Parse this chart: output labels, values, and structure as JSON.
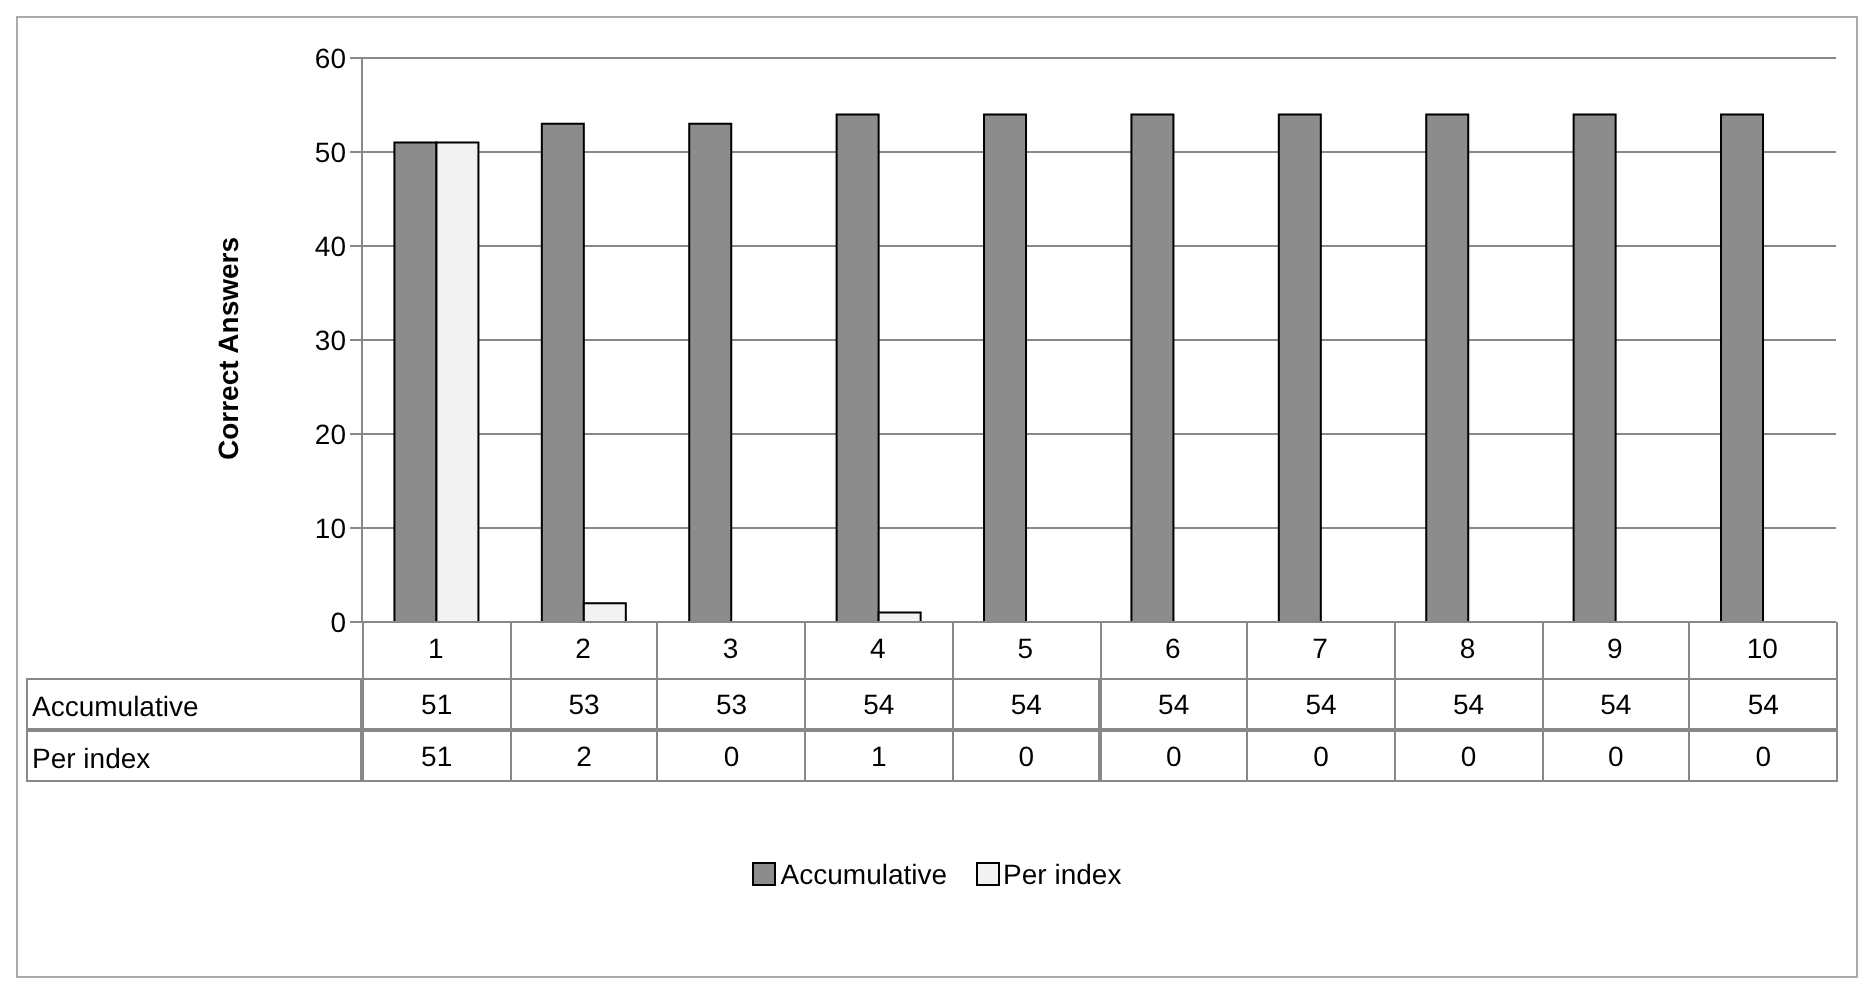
{
  "chart_data": {
    "type": "bar",
    "ylabel": "Correct Answers",
    "categories": [
      "1",
      "2",
      "3",
      "4",
      "5",
      "6",
      "7",
      "8",
      "9",
      "10"
    ],
    "series": [
      {
        "name": "Accumulative",
        "color": "#8c8c8c",
        "values": [
          51,
          53,
          53,
          54,
          54,
          54,
          54,
          54,
          54,
          54
        ]
      },
      {
        "name": "Per index",
        "color": "#f2f2f2",
        "values": [
          51,
          2,
          0,
          1,
          0,
          0,
          0,
          0,
          0,
          0
        ]
      }
    ],
    "ylim": [
      0,
      60
    ],
    "yticks": [
      0,
      10,
      20,
      30,
      40,
      50,
      60
    ],
    "grid": "y",
    "legend": "bottom",
    "data_labels": true
  }
}
